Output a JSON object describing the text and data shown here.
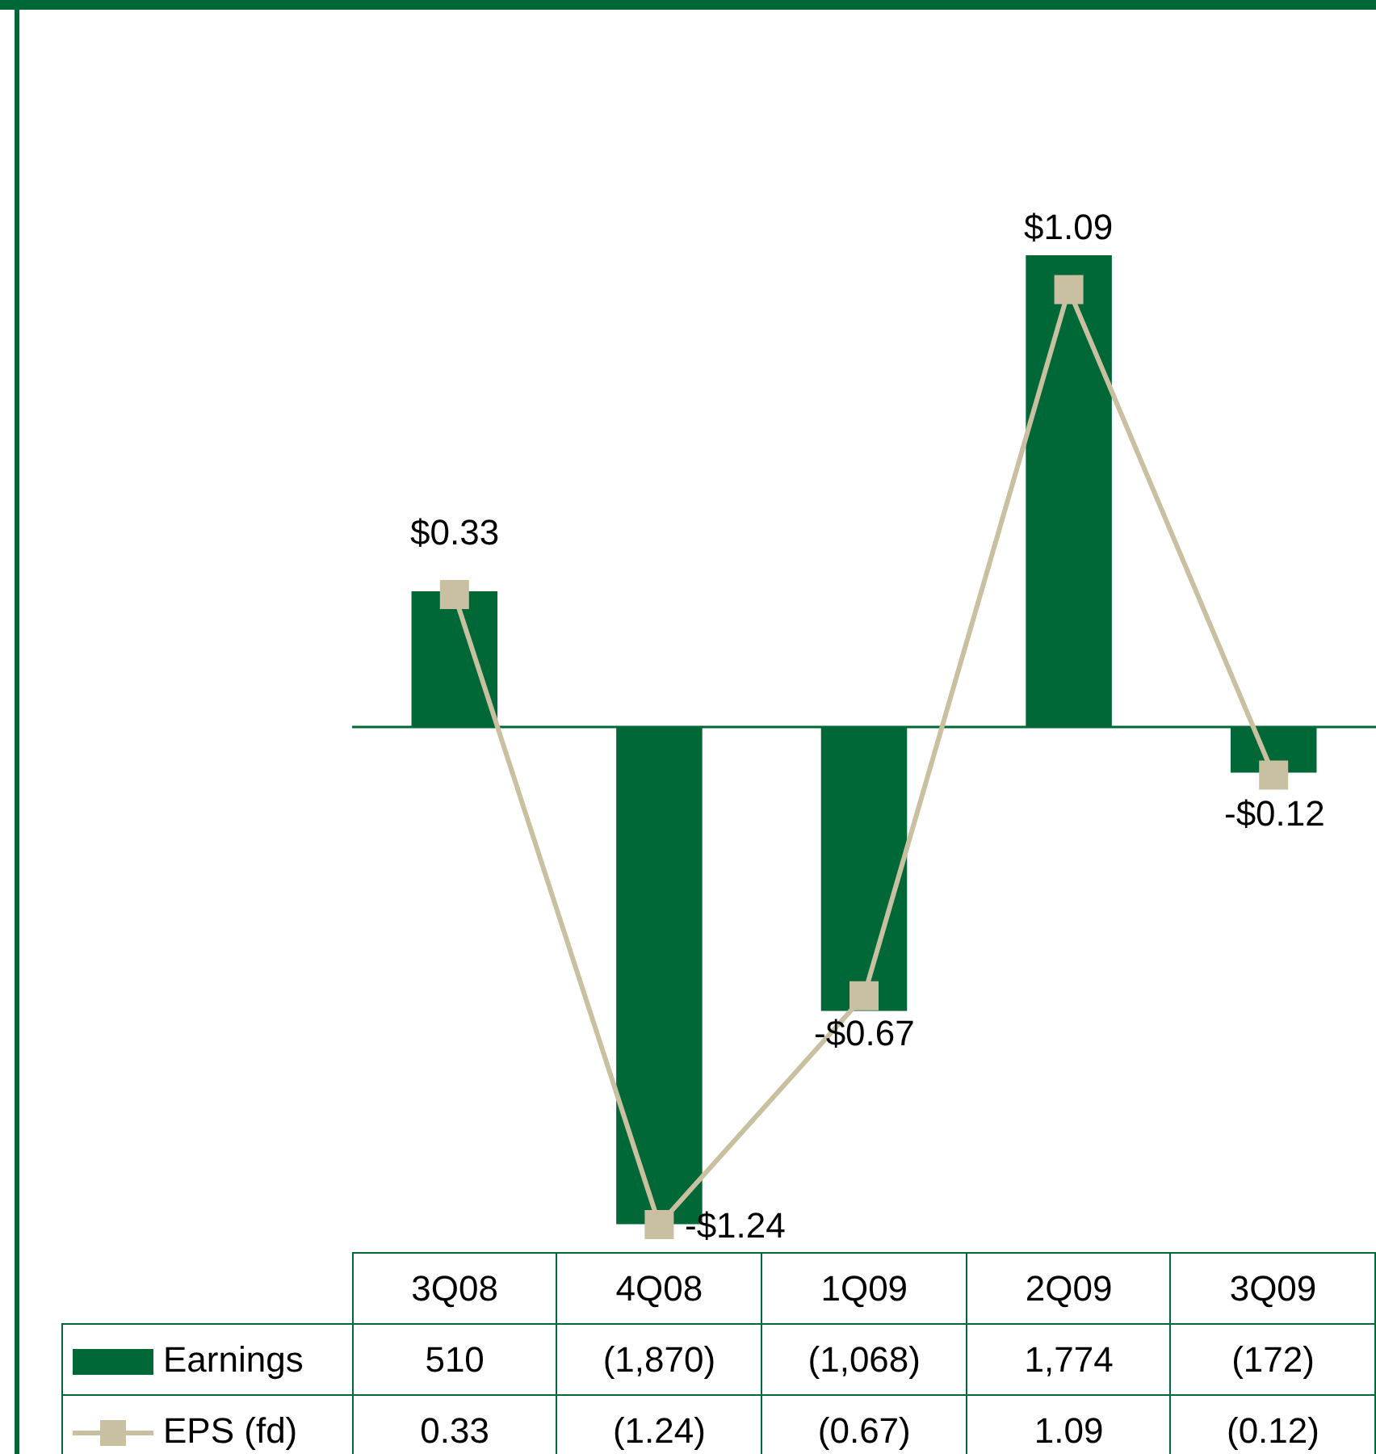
{
  "chart_data": {
    "type": "bar",
    "categories": [
      "3Q08",
      "4Q08",
      "1Q09",
      "2Q09",
      "3Q09"
    ],
    "series": [
      {
        "name": "Earnings",
        "color": "#006837",
        "values": [
          510,
          -1870,
          -1068,
          1774,
          -172
        ],
        "value_labels": [
          "510",
          "(1,870)",
          "(1,068)",
          "1,774",
          "(172)"
        ]
      },
      {
        "name": "EPS (fd)",
        "type": "line",
        "axis": "y2",
        "color": "#c8c0a0",
        "marker": "square",
        "values": [
          0.33,
          -1.24,
          -0.67,
          1.09,
          -0.12
        ],
        "value_labels": [
          "0.33",
          "(1.24)",
          "(0.67)",
          "1.09",
          "(0.12)"
        ]
      }
    ],
    "annotations": [
      "$0.33",
      "-$1.24",
      "-$0.67",
      "$1.09",
      "-$0.12"
    ],
    "ref_lines": [
      {
        "axis": "y",
        "value": 0,
        "color": "#006837"
      }
    ],
    "tick_labels": false,
    "grid": false,
    "legend": "bottom"
  }
}
